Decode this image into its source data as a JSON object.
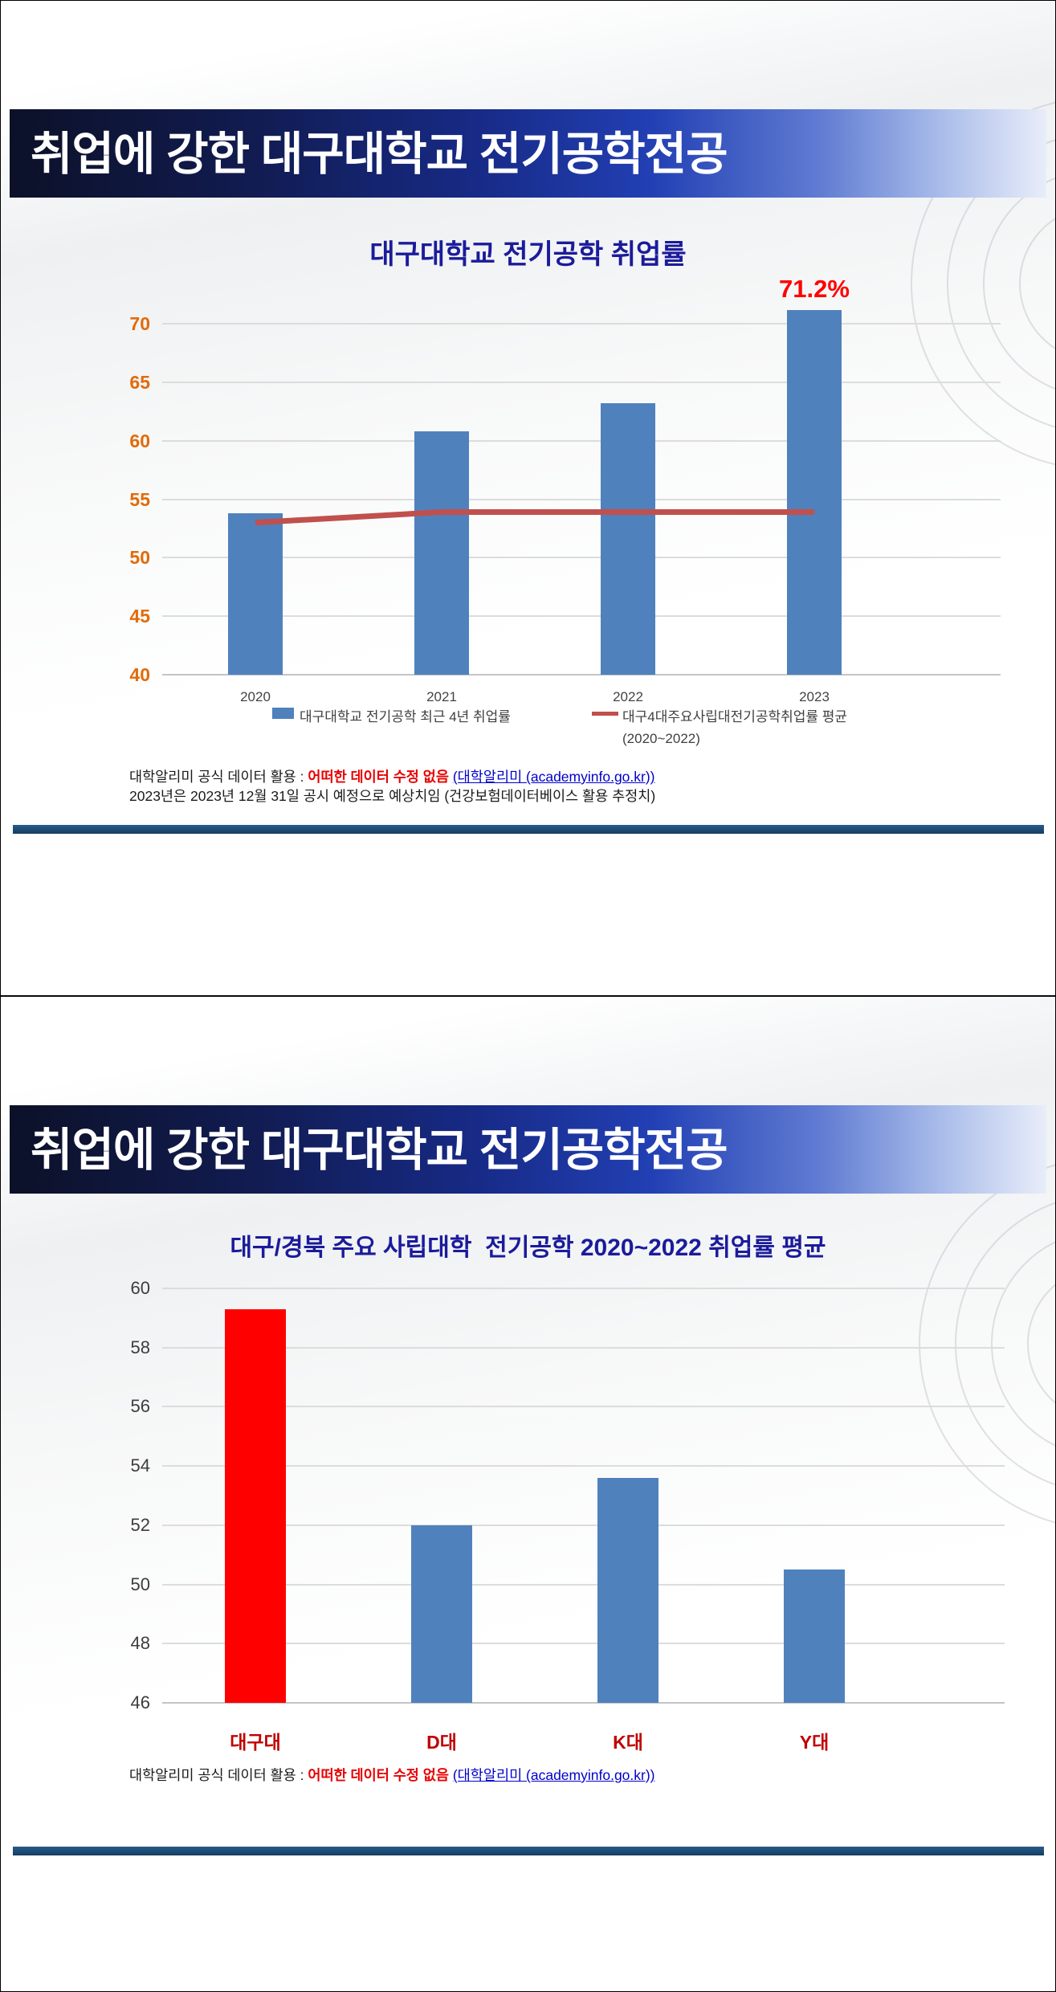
{
  "colors": {
    "banner_navy": "#111b4e",
    "bar_blue": "#4f81bd",
    "line_red": "#c0504d",
    "highlight_red": "#ff0000",
    "title_navy": "#1b1b9b",
    "axis_orange": "#e26b0a",
    "category_red": "#c00000",
    "link_blue": "#0000cc",
    "separator_navy": "#1f4e79"
  },
  "slide1": {
    "banner_title": "취업에 강한 대구대학교 전기공학전공",
    "legend": {
      "bar_label": "대구대학교 전기공학 최근 4년 취업률",
      "line_label": "대구4대주요사립대전기공학취업률 평균",
      "line_sublabel": "(2020~2022)"
    },
    "footer": {
      "line1_prefix": "대학알리미 공식 데이터 활용 : ",
      "line1_emphasis": "어떠한 데이터 수정 없음",
      "line1_link": "(대학알리미 (academyinfo.go.kr))",
      "line2": "2023년은 2023년 12월 31일 공시 예정으로 예상치임 (건강보험데이터베이스 활용 추정치)"
    }
  },
  "slide2": {
    "banner_title": "취업에 강한 대구대학교 전기공학전공",
    "footer": {
      "line1_prefix": "대학알리미 공식 데이터 활용 : ",
      "line1_emphasis": "어떠한 데이터 수정 없음",
      "line1_link": "(대학알리미 (academyinfo.go.kr))"
    }
  },
  "chart_data": [
    {
      "type": "bar",
      "title": "대구대학교 전기공학 취업률",
      "categories": [
        "2020",
        "2021",
        "2022",
        "2023"
      ],
      "series": [
        {
          "name": "대구대학교 전기공학 최근 4년 취업률",
          "type": "bar",
          "color": "#4f81bd",
          "values": [
            53.8,
            60.8,
            63.2,
            71.2
          ]
        },
        {
          "name": "대구4대주요사립대전기공학취업률 평균 (2020~2022)",
          "type": "line",
          "color": "#c0504d",
          "values": [
            53.0,
            53.9,
            53.9,
            53.9
          ]
        }
      ],
      "ylim": [
        40,
        70
      ],
      "ytick_step": 5,
      "ytick_labels": [
        40,
        45,
        50,
        55,
        60,
        65,
        70
      ],
      "annotations": [
        {
          "text": "71.2%",
          "category": "2023",
          "color": "#ff0000"
        }
      ],
      "grid": true,
      "legend_position": "bottom"
    },
    {
      "type": "bar",
      "title": "대구/경북 주요 사립대학  전기공학 2020~2022 취업률 평균",
      "categories": [
        "대구대",
        "D대",
        "K대",
        "Y대"
      ],
      "values": [
        59.3,
        52.0,
        53.6,
        50.5
      ],
      "bar_colors": [
        "#ff0000",
        "#4f81bd",
        "#4f81bd",
        "#4f81bd"
      ],
      "ylim": [
        46,
        60
      ],
      "ytick_step": 2,
      "ytick_labels": [
        46,
        48,
        50,
        52,
        54,
        56,
        58,
        60
      ],
      "grid": true,
      "legend_position": "none"
    }
  ]
}
